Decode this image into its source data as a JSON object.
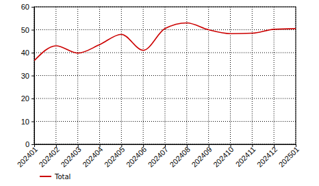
{
  "chart_data": {
    "type": "line",
    "categories": [
      "202401",
      "202402",
      "202403",
      "202404",
      "202405",
      "202406",
      "202407",
      "202408",
      "202409",
      "202410",
      "202411",
      "202412",
      "202501"
    ],
    "series": [
      {
        "name": "Total",
        "color": "#cc0000",
        "values": [
          36.5,
          43,
          39.8,
          43.5,
          48,
          41,
          50.5,
          53,
          50,
          48.3,
          48.5,
          50.2,
          50.5
        ]
      }
    ],
    "ylim": [
      0,
      60
    ],
    "yticks": [
      0,
      10,
      20,
      30,
      40,
      50,
      60
    ],
    "grid": true,
    "legend": "bottom-left"
  }
}
